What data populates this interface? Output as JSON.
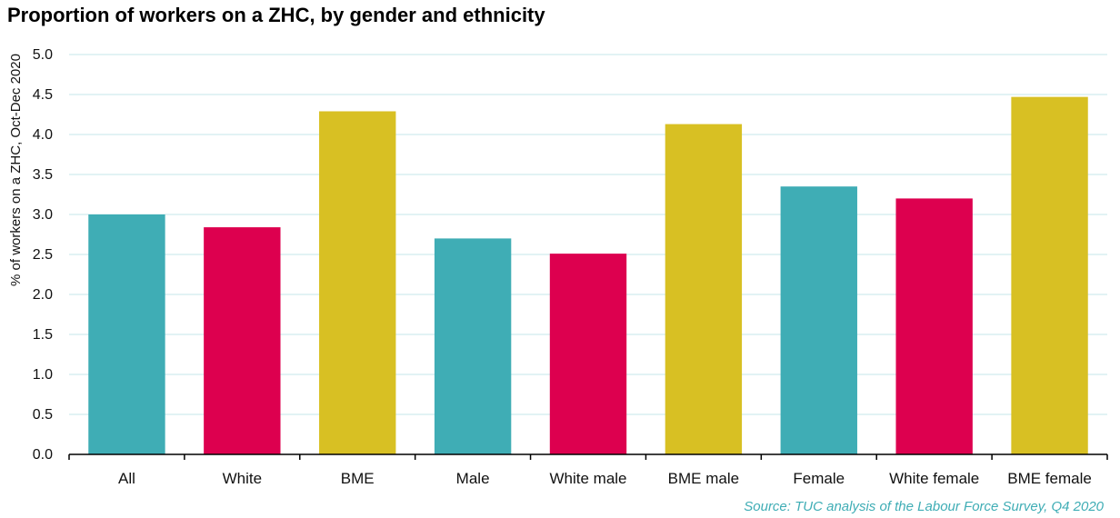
{
  "chart_data": {
    "type": "bar",
    "title": "Proportion of workers on a ZHC, by gender and ethnicity",
    "xlabel": "",
    "ylabel": "% of workers on a ZHC, Oct-Dec 2020",
    "ylim": [
      0,
      5.0
    ],
    "yticks": [
      "0.0",
      "0.5",
      "1.0",
      "1.5",
      "2.0",
      "2.5",
      "3.0",
      "3.5",
      "4.0",
      "4.5",
      "5.0"
    ],
    "categories": [
      "All",
      "White",
      "BME",
      "Male",
      "White male",
      "BME male",
      "Female",
      "White female",
      "BME female"
    ],
    "values": [
      3.0,
      2.84,
      4.29,
      2.7,
      2.51,
      4.13,
      3.35,
      3.2,
      4.47
    ],
    "colors": [
      "#3fadb5",
      "#dd004f",
      "#d8c023",
      "#3fadb5",
      "#dd004f",
      "#d8c023",
      "#3fadb5",
      "#dd004f",
      "#d8c023"
    ],
    "grid": true,
    "gridline_color": "#d9eff1",
    "legend": "none"
  },
  "source": "Source: TUC analysis of the Labour Force Survey, Q4 2020"
}
